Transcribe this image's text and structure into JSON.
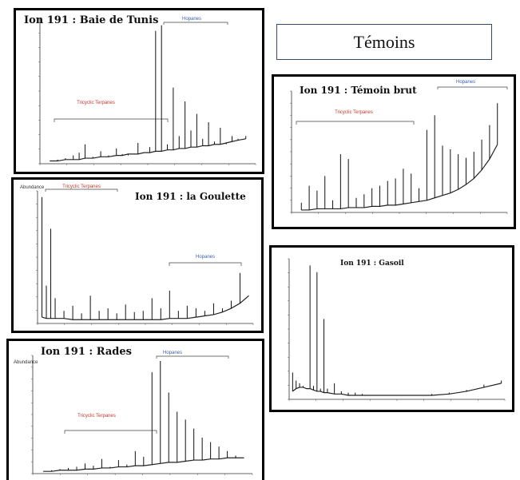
{
  "header": {
    "temoins_label": "Témoins"
  },
  "charts": [
    {
      "id": "baie",
      "title": "Ion 191 : Baie de Tunis",
      "annotations": [
        "Hopanes",
        "Tricyclic Terpanes"
      ]
    },
    {
      "id": "goulette",
      "title": "Ion 191 : la Goulette",
      "annotations": [
        "Tricyclic Terpanes",
        "Hopanes"
      ],
      "ylabel": "Abundance"
    },
    {
      "id": "rades",
      "title": "Ion 191 : Rades",
      "annotations": [
        "Hopanes",
        "Tricyclic Terpanes"
      ],
      "ylabel": "Abundance"
    },
    {
      "id": "temoin",
      "title": "Ion 191 : Témoin brut",
      "annotations": [
        "Tricyclic Terpanes",
        "Hopanes"
      ]
    },
    {
      "id": "gasoil",
      "title": "Ion 191 : Gasoil",
      "annotations": []
    }
  ],
  "chart_data": [
    {
      "type": "line",
      "title": "Ion 191 : Baie de Tunis",
      "x": [
        50,
        54,
        58,
        62,
        65,
        68,
        72,
        76,
        80,
        84,
        87,
        90,
        95,
        98,
        101,
        104,
        107,
        110,
        113,
        116,
        119,
        122,
        125,
        128,
        131,
        134,
        137,
        140,
        143,
        146,
        150
      ],
      "y": [
        2,
        3,
        4,
        6,
        8,
        14,
        5,
        9,
        6,
        11,
        7,
        6,
        15,
        8,
        12,
        96,
        100,
        14,
        55,
        20,
        45,
        24,
        36,
        18,
        30,
        16,
        26,
        14,
        20,
        18,
        20
      ],
      "baseline": [
        2,
        2,
        3,
        3,
        3,
        4,
        4,
        5,
        5,
        6,
        6,
        7,
        7,
        8,
        8,
        9,
        9,
        10,
        10,
        11,
        11,
        12,
        12,
        13,
        13,
        14,
        14,
        15,
        16,
        17,
        18
      ],
      "xlim": [
        45,
        155
      ],
      "ylim": [
        0,
        105
      ]
    },
    {
      "type": "line",
      "title": "Ion 191 : la Goulette",
      "x": [
        40,
        42,
        44,
        46,
        50,
        54,
        58,
        62,
        66,
        70,
        74,
        78,
        82,
        86,
        90,
        94,
        98,
        102,
        106,
        110,
        114,
        118,
        122,
        126,
        130,
        134
      ],
      "y": [
        100,
        30,
        75,
        20,
        10,
        14,
        8,
        22,
        10,
        12,
        8,
        15,
        9,
        10,
        20,
        12,
        26,
        10,
        14,
        12,
        10,
        16,
        12,
        18,
        40,
        22
      ],
      "baseline": [
        5,
        4,
        4,
        4,
        4,
        3,
        3,
        3,
        3,
        3,
        3,
        3,
        3,
        3,
        3,
        3,
        4,
        4,
        4,
        5,
        6,
        7,
        9,
        12,
        16,
        22
      ],
      "xlim": [
        38,
        136
      ],
      "ylim": [
        0,
        105
      ]
    },
    {
      "type": "line",
      "title": "Ion 191 : Rades",
      "x": [
        50,
        54,
        58,
        62,
        66,
        70,
        74,
        78,
        82,
        86,
        90,
        94,
        98,
        102,
        106,
        110,
        114,
        118,
        122,
        126,
        130,
        134,
        138,
        142,
        146
      ],
      "y": [
        2,
        3,
        4,
        5,
        6,
        9,
        7,
        13,
        6,
        12,
        8,
        20,
        15,
        90,
        100,
        72,
        55,
        48,
        40,
        32,
        28,
        24,
        20,
        16,
        14
      ],
      "baseline": [
        2,
        2,
        3,
        3,
        3,
        4,
        4,
        5,
        5,
        6,
        6,
        7,
        7,
        8,
        9,
        10,
        10,
        11,
        12,
        12,
        13,
        13,
        14,
        14,
        14
      ],
      "xlim": [
        45,
        150
      ],
      "ylim": [
        0,
        105
      ]
    },
    {
      "type": "line",
      "title": "Ion 191 : Témoin brut",
      "x": [
        50,
        54,
        58,
        62,
        66,
        70,
        74,
        78,
        82,
        86,
        90,
        94,
        98,
        102,
        106,
        110,
        114,
        118,
        122,
        126,
        130,
        134,
        138,
        142,
        146,
        150
      ],
      "y": [
        8,
        22,
        18,
        30,
        10,
        48,
        44,
        12,
        15,
        20,
        22,
        26,
        28,
        36,
        32,
        20,
        68,
        80,
        55,
        52,
        48,
        45,
        50,
        60,
        72,
        90
      ],
      "baseline": [
        2,
        2,
        3,
        3,
        3,
        3,
        4,
        4,
        4,
        5,
        5,
        6,
        6,
        7,
        8,
        9,
        10,
        12,
        14,
        16,
        19,
        23,
        28,
        35,
        44,
        56
      ],
      "xlim": [
        45,
        155
      ],
      "ylim": [
        0,
        100
      ]
    },
    {
      "type": "line",
      "title": "Ion 191 : Gasoil",
      "x": [
        20,
        22,
        24,
        26,
        28,
        30,
        32,
        34,
        36,
        38,
        40,
        44,
        48,
        52,
        56,
        60,
        70,
        80,
        90,
        100,
        110,
        120,
        130,
        140
      ],
      "y": [
        20,
        14,
        12,
        10,
        8,
        100,
        10,
        95,
        8,
        60,
        8,
        12,
        6,
        5,
        5,
        4,
        3,
        3,
        3,
        4,
        5,
        7,
        11,
        14
      ],
      "baseline": [
        6,
        8,
        9,
        9,
        8,
        8,
        7,
        6,
        6,
        5,
        5,
        4,
        4,
        3,
        3,
        3,
        3,
        3,
        3,
        3,
        4,
        6,
        9,
        12
      ],
      "xlim": [
        18,
        142
      ],
      "ylim": [
        0,
        105
      ]
    }
  ]
}
